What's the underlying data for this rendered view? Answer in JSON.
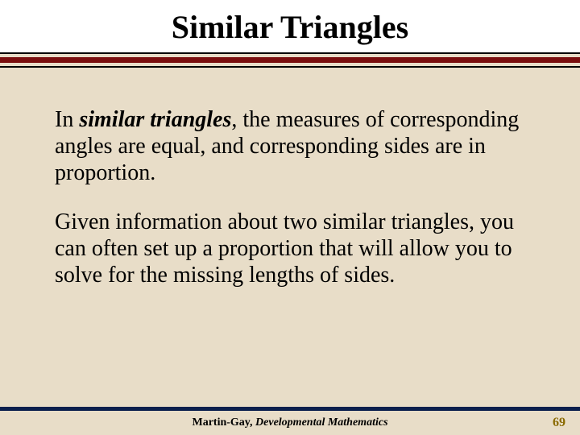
{
  "slide": {
    "title": "Similar Triangles",
    "title_color": "#000000",
    "title_fontsize": 40,
    "title_bg": "#ffffff",
    "background_color": "#e8ddc8",
    "divider": {
      "thin_color": "#000000",
      "thick_color": "#7a0e0e",
      "thin_height": 2,
      "thick_height": 7
    }
  },
  "body": {
    "fontsize": 28,
    "color": "#000000",
    "para1_prefix": "In ",
    "para1_emph": "similar triangles",
    "para1_rest": ", the measures of corresponding angles are equal, and corresponding sides are in proportion.",
    "para2": "Given information about two similar triangles, you can often set up a proportion that will allow you to solve for the missing lengths of sides."
  },
  "footer": {
    "rule_color": "#0a1f4d",
    "author": "Martin-Gay, ",
    "book": "Developmental Mathematics",
    "page_number": "69",
    "page_number_color": "#8a6a00",
    "fontsize": 14
  }
}
